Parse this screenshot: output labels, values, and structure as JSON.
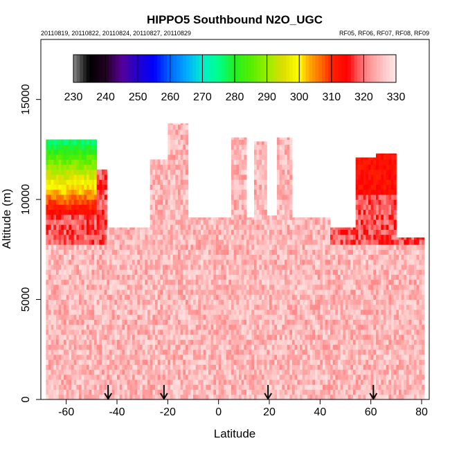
{
  "chart_data": {
    "type": "heatmap",
    "title": "HIPPO5 Southbound N2O_UGC",
    "subtitle_left": "20110819, 20110822, 20110824, 20110827, 20110829",
    "subtitle_right": "RF05, RF06, RF07, RF08, RF09",
    "xlabel": "Latitude",
    "ylabel": "Altitude (m)",
    "xlim": [
      -70,
      83
    ],
    "ylim": [
      0,
      18000
    ],
    "x_ticks": [
      -60,
      -40,
      -20,
      0,
      20,
      40,
      60,
      80
    ],
    "x_tick_labels": [
      "-60",
      "-40",
      "-20",
      "0",
      "20",
      "40",
      "60",
      "80"
    ],
    "y_ticks": [
      0,
      5000,
      10000,
      15000
    ],
    "y_tick_labels": [
      "0",
      "5000",
      "10000",
      "15000"
    ],
    "colorbar": {
      "min": 230,
      "max": 330,
      "ticks": [
        230,
        240,
        250,
        260,
        270,
        280,
        290,
        300,
        310,
        320,
        330
      ],
      "tick_labels": [
        "230",
        "240",
        "250",
        "260",
        "270",
        "280",
        "290",
        "300",
        "310",
        "320",
        "330"
      ],
      "stops": [
        {
          "v": 230,
          "c": "#8a8a8a"
        },
        {
          "v": 233,
          "c": "#303030"
        },
        {
          "v": 235,
          "c": "#000000"
        },
        {
          "v": 240,
          "c": "#220022"
        },
        {
          "v": 245,
          "c": "#550099"
        },
        {
          "v": 250,
          "c": "#2200cc"
        },
        {
          "v": 255,
          "c": "#0000ff"
        },
        {
          "v": 260,
          "c": "#0066ff"
        },
        {
          "v": 265,
          "c": "#00aaff"
        },
        {
          "v": 270,
          "c": "#00eecc"
        },
        {
          "v": 275,
          "c": "#00ff88"
        },
        {
          "v": 280,
          "c": "#22ee22"
        },
        {
          "v": 285,
          "c": "#55ee00"
        },
        {
          "v": 290,
          "c": "#99ee00"
        },
        {
          "v": 295,
          "c": "#dddd00"
        },
        {
          "v": 300,
          "c": "#ffff00"
        },
        {
          "v": 303,
          "c": "#ffaa00"
        },
        {
          "v": 307,
          "c": "#ff6600"
        },
        {
          "v": 310,
          "c": "#ff2200"
        },
        {
          "v": 315,
          "c": "#ff0000"
        },
        {
          "v": 318,
          "c": "#ff5555"
        },
        {
          "v": 322,
          "c": "#ff9999"
        },
        {
          "v": 326,
          "c": "#ffc4c4"
        },
        {
          "v": 330,
          "c": "#ffe8e8"
        }
      ]
    },
    "profiles": [
      {
        "lat_min": -68,
        "lat_max": -48,
        "alt_max": 13000,
        "note": "strong vertical gradient: high values low, low values aloft"
      },
      {
        "lat_min": -48,
        "lat_max": -44,
        "alt_max": 11500
      },
      {
        "lat_min": -44,
        "lat_max": -35,
        "alt_max": 8600
      },
      {
        "lat_min": -35,
        "lat_max": -27,
        "alt_max": 8600
      },
      {
        "lat_min": -27,
        "lat_max": -20,
        "alt_max": 12000
      },
      {
        "lat_min": -20,
        "lat_max": -12,
        "alt_max": 13800
      },
      {
        "lat_min": -12,
        "lat_max": 5,
        "alt_max": 9100
      },
      {
        "lat_min": 5,
        "lat_max": 11,
        "alt_max": 13100
      },
      {
        "lat_min": 11,
        "lat_max": 14,
        "alt_max": 9100
      },
      {
        "lat_min": 14,
        "lat_max": 19,
        "alt_max": 12900
      },
      {
        "lat_min": 19,
        "lat_max": 23,
        "alt_max": 9200
      },
      {
        "lat_min": 23,
        "lat_max": 29,
        "alt_max": 13100
      },
      {
        "lat_min": 29,
        "lat_max": 44,
        "alt_max": 9100
      },
      {
        "lat_min": 44,
        "lat_max": 54,
        "alt_max": 8600
      },
      {
        "lat_min": 54,
        "lat_max": 62,
        "alt_max": 12100
      },
      {
        "lat_min": 62,
        "lat_max": 70,
        "alt_max": 12300
      },
      {
        "lat_min": 70,
        "lat_max": 81,
        "alt_max": 8100
      }
    ],
    "profile_arrows_lat": [
      -43.5,
      -21.5,
      19.5,
      61
    ]
  }
}
